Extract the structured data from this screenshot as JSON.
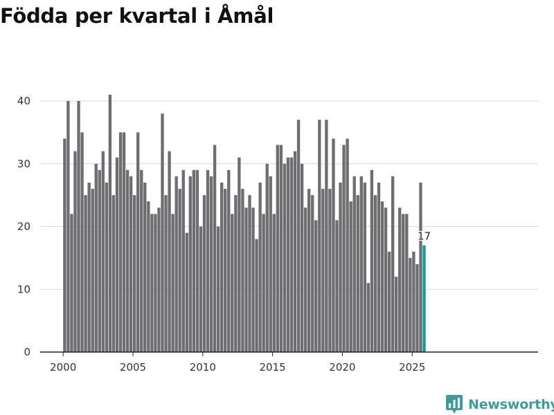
{
  "chart_data": {
    "type": "bar",
    "title": "Födda per kvartal i Åmål",
    "xlabel": "",
    "ylabel": "",
    "ylim": [
      0,
      40
    ],
    "yticks": [
      "0",
      "10",
      "20",
      "30",
      "40"
    ],
    "xticks": [
      "2000",
      "2005",
      "2010",
      "2015",
      "2020",
      "2025"
    ],
    "x_start_year": 2000,
    "periods_per_year": 4,
    "values": [
      34,
      40,
      22,
      32,
      40,
      35,
      25,
      27,
      26,
      30,
      29,
      32,
      27,
      41,
      25,
      31,
      35,
      35,
      29,
      28,
      25,
      35,
      29,
      27,
      24,
      22,
      22,
      23,
      38,
      25,
      32,
      22,
      28,
      26,
      29,
      19,
      28,
      29,
      29,
      20,
      25,
      29,
      28,
      33,
      20,
      27,
      26,
      29,
      22,
      25,
      31,
      26,
      23,
      25,
      23,
      18,
      27,
      22,
      30,
      28,
      22,
      33,
      33,
      30,
      31,
      31,
      32,
      37,
      30,
      23,
      26,
      25,
      21,
      37,
      26,
      37,
      26,
      34,
      21,
      27,
      33,
      34,
      24,
      28,
      25,
      28,
      27,
      11,
      29,
      25,
      27,
      24,
      23,
      16,
      28,
      12,
      23,
      22,
      22,
      15,
      16,
      14,
      27,
      17
    ],
    "last_value_label": "17",
    "grid": true,
    "colors": {
      "bar": "#6e6d72",
      "highlight": "#0e9d97",
      "grid": "#d9d9d9",
      "axis": "#222222",
      "tick_text": "#333333"
    }
  },
  "brand": {
    "name": "Newsworthy",
    "logo_icon": "bar-chart-speech-bubble-icon",
    "color": "#3d9c9c"
  }
}
